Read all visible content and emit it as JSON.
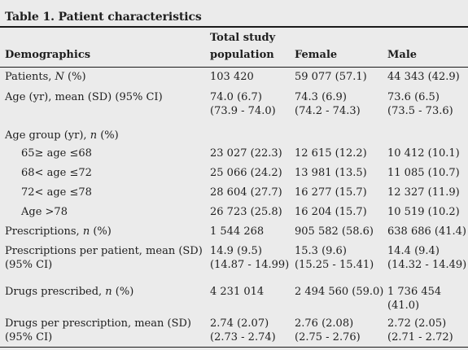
{
  "title": "Table 1. Patient characteristics",
  "columns": {
    "demographics": "Demographics",
    "total_line1": "Total study",
    "total_line2": "population",
    "female": "Female",
    "male": "Male"
  },
  "rows": [
    {
      "label": "Patients, ",
      "label_italic": "N",
      "label_suffix": " (%)",
      "total": "103 420",
      "female": "59 077 (57.1)",
      "male": "44 343 (42.9)"
    },
    {
      "label": "Age (yr), mean (SD) (95% CI)",
      "total": "74.0 (6.7)",
      "total2": "(73.9 - 74.0)",
      "female": "74.3 (6.9)",
      "female2": "(74.2 - 74.3)",
      "male": "73.6 (6.5)",
      "male2": "(73.5 - 73.6)"
    },
    {
      "label": "Age group (yr), ",
      "label_italic": "n",
      "label_suffix": " (%)"
    },
    {
      "label": "65≥ age ≤68",
      "total": "23 027 (22.3)",
      "female": "12 615 (12.2)",
      "male": "10 412 (10.1)"
    },
    {
      "label": "68< age ≤72",
      "total": "25 066 (24.2)",
      "female": "13 981 (13.5)",
      "male": "11 085 (10.7)"
    },
    {
      "label": "72< age ≤78",
      "total": "28 604 (27.7)",
      "female": "16 277 (15.7)",
      "male": "12 327 (11.9)"
    },
    {
      "label": "Age >78",
      "total": "26 723 (25.8)",
      "female": "16 204 (15.7)",
      "male": "10 519 (10.2)"
    },
    {
      "label": "Prescriptions, ",
      "label_italic": "n",
      "label_suffix": " (%)",
      "total": "1 544 268",
      "female": "905 582 (58.6)",
      "male": "638 686 (41.4)"
    },
    {
      "label": "Prescriptions per patient, mean (SD)",
      "label2": "(95% CI)",
      "total": "14.9 (9.5)",
      "total2": "(14.87 - 14.99)",
      "female": "15.3 (9.6)",
      "female2": "(15.25 - 15.41)",
      "male": "14.4 (9.4)",
      "male2": "(14.32 - 14.49)"
    },
    {
      "label": "Drugs prescribed, ",
      "label_italic": "n",
      "label_suffix": " (%)",
      "total": "4 231 014",
      "female": "2 494 560 (59.0)",
      "male": "1 736 454 (41.0)"
    },
    {
      "label": "Drugs per prescription, mean (SD)",
      "label2": "(95% CI)",
      "total": "2.74 (2.07)",
      "total2": "(2.73 - 2.74)",
      "female": "2.76 (2.08)",
      "female2": "(2.75 - 2.76)",
      "male": "2.72 (2.05)",
      "male2": "(2.71 - 2.72)"
    }
  ]
}
